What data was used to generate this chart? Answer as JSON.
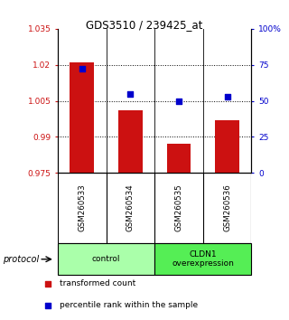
{
  "title": "GDS3510 / 239425_at",
  "samples": [
    "GSM260533",
    "GSM260534",
    "GSM260535",
    "GSM260536"
  ],
  "bar_values": [
    1.021,
    1.001,
    0.987,
    0.997
  ],
  "bar_baseline": 0.975,
  "percentile_percents": [
    72,
    55,
    50,
    53
  ],
  "ylim_left": [
    0.975,
    1.035
  ],
  "ylim_right": [
    0,
    100
  ],
  "yticks_left": [
    0.975,
    0.99,
    1.005,
    1.02,
    1.035
  ],
  "yticks_right": [
    0,
    25,
    50,
    75,
    100
  ],
  "ytick_labels_left": [
    "0.975",
    "0.99",
    "1.005",
    "1.02",
    "1.035"
  ],
  "ytick_labels_right": [
    "0",
    "25",
    "50",
    "75",
    "100%"
  ],
  "hlines": [
    0.99,
    1.005,
    1.02
  ],
  "bar_color": "#cc1111",
  "dot_color": "#0000cc",
  "groups": [
    {
      "label": "control",
      "samples": [
        0,
        1
      ],
      "color": "#aaffaa"
    },
    {
      "label": "CLDN1\noverexpression",
      "samples": [
        2,
        3
      ],
      "color": "#55ee55"
    }
  ],
  "protocol_label": "protocol",
  "legend_bar_label": "transformed count",
  "legend_dot_label": "percentile rank within the sample",
  "sample_box_color": "#bbbbbb",
  "bg_color": "#ffffff"
}
